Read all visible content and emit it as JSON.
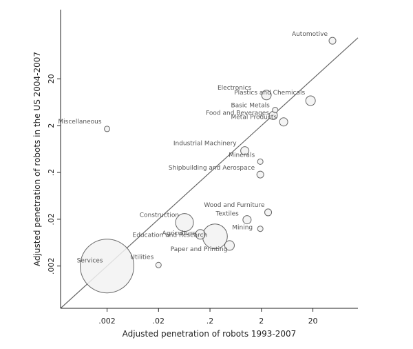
{
  "chart_data": {
    "type": "scatter",
    "xlabel": "Adjusted penetration of robots 1993-2007",
    "ylabel": "Adjusted penetration of robots in the US 2004-2007",
    "x_scale": "log",
    "y_scale": "log",
    "xlim": [
      0.00025,
      150
    ],
    "ylim": [
      0.00025,
      600
    ],
    "x_ticks": [
      0.002,
      0.02,
      0.2,
      2,
      20
    ],
    "x_tick_labels": [
      ".002",
      ".02",
      ".2",
      "2",
      "20"
    ],
    "y_ticks": [
      0.002,
      0.02,
      0.2,
      2,
      20
    ],
    "y_tick_labels": [
      ".002",
      ".02",
      ".2",
      "2",
      "20"
    ],
    "grid": false,
    "legend": "none",
    "reference_line": "45-degree line (y = x)",
    "marker_size_meaning": "industry employment weight",
    "colors": {
      "line": "#666666",
      "marker_stroke": "#666666",
      "marker_fill": "#f2f2f2",
      "point_label": "#555555",
      "axis": "#222222"
    },
    "points": [
      {
        "label": "Automotive",
        "x": 48,
        "y": 130,
        "size": 5
      },
      {
        "label": "Electronics",
        "x": 2.5,
        "y": 9,
        "size": 7
      },
      {
        "label": "Plastics and Chemicals",
        "x": 18,
        "y": 6.8,
        "size": 7
      },
      {
        "label": "Basic Metals",
        "x": 3.7,
        "y": 4.3,
        "size": 4
      },
      {
        "label": "Food and Beverages",
        "x": 3.4,
        "y": 3.3,
        "size": 6
      },
      {
        "label": "Metal Products",
        "x": 5.4,
        "y": 2.4,
        "size": 6
      },
      {
        "label": "Miscellaneous",
        "x": 0.002,
        "y": 1.7,
        "size": 4
      },
      {
        "label": "Industrial Machinery",
        "x": 0.95,
        "y": 0.58,
        "size": 6
      },
      {
        "label": "Minerals",
        "x": 1.9,
        "y": 0.34,
        "size": 4
      },
      {
        "label": "Shipbuilding and Aerospace",
        "x": 1.9,
        "y": 0.18,
        "size": 5
      },
      {
        "label": "Wood and Furniture",
        "x": 2.7,
        "y": 0.028,
        "size": 5
      },
      {
        "label": "Textiles",
        "x": 1.05,
        "y": 0.0195,
        "size": 6
      },
      {
        "label": "Mining",
        "x": 1.9,
        "y": 0.0125,
        "size": 4
      },
      {
        "label": "Construction",
        "x": 0.064,
        "y": 0.017,
        "size": 13
      },
      {
        "label": "Agriculture",
        "x": 0.13,
        "y": 0.0095,
        "size": 7
      },
      {
        "label": "Education and Research",
        "x": 0.25,
        "y": 0.0086,
        "size": 18
      },
      {
        "label": "Paper and Printing",
        "x": 0.48,
        "y": 0.0055,
        "size": 7
      },
      {
        "label": "Services",
        "x": 0.002,
        "y": 0.002,
        "size": 39
      },
      {
        "label": "Utilities",
        "x": 0.02,
        "y": 0.0021,
        "size": 4
      }
    ]
  }
}
